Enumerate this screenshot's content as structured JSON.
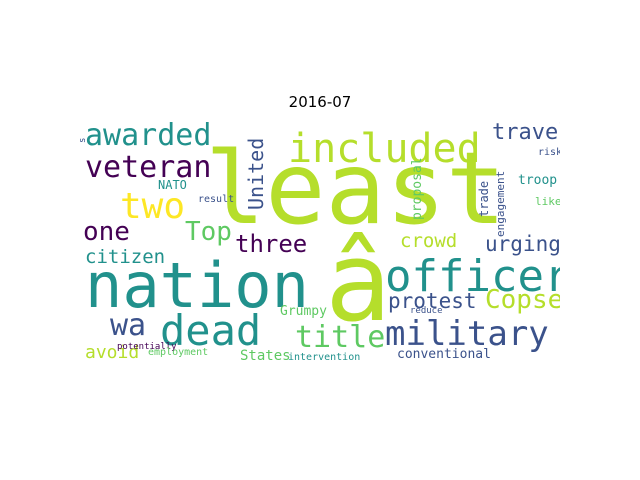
{
  "title": "2016-07",
  "palette": [
    "#440154",
    "#3b528b",
    "#21918c",
    "#5ec962",
    "#b5de2b",
    "#fde725"
  ],
  "words": [
    {
      "text": "least",
      "color": "#b5de2b"
    },
    {
      "text": "nation",
      "color": "#21918c"
    },
    {
      "text": "â",
      "color": "#b5de2b"
    },
    {
      "text": "included",
      "color": "#b5de2b"
    },
    {
      "text": "officer",
      "color": "#21918c"
    },
    {
      "text": "dead",
      "color": "#21918c"
    },
    {
      "text": "military",
      "color": "#3b528b"
    },
    {
      "text": "awarded",
      "color": "#21918c"
    },
    {
      "text": "veteran",
      "color": "#440154"
    },
    {
      "text": "two",
      "color": "#fde725"
    },
    {
      "text": "one",
      "color": "#440154"
    },
    {
      "text": "Top",
      "color": "#5ec962"
    },
    {
      "text": "wa",
      "color": "#3b528b"
    },
    {
      "text": "three",
      "color": "#440154"
    },
    {
      "text": "title",
      "color": "#5ec962"
    },
    {
      "text": "Copse",
      "color": "#b5de2b"
    },
    {
      "text": "protest",
      "color": "#3b528b"
    },
    {
      "text": "travel",
      "color": "#3b528b"
    },
    {
      "text": "urging",
      "color": "#3b528b"
    },
    {
      "text": "citizen",
      "color": "#21918c"
    },
    {
      "text": "crowd",
      "color": "#b5de2b"
    },
    {
      "text": "United",
      "color": "#3b528b"
    },
    {
      "text": "avoid",
      "color": "#b5de2b"
    },
    {
      "text": "States",
      "color": "#5ec962"
    },
    {
      "text": "conventional",
      "color": "#3b528b"
    },
    {
      "text": "Grumpy",
      "color": "#5ec962"
    },
    {
      "text": "NATO",
      "color": "#21918c"
    },
    {
      "text": "troop",
      "color": "#21918c"
    },
    {
      "text": "proposal",
      "color": "#5ec962"
    },
    {
      "text": "trade",
      "color": "#3b528b"
    },
    {
      "text": "engagement",
      "color": "#3b528b"
    },
    {
      "text": "likely",
      "color": "#5ec962"
    },
    {
      "text": "risky",
      "color": "#3b528b"
    },
    {
      "text": "result",
      "color": "#3b528b"
    },
    {
      "text": "potentially",
      "color": "#440154"
    },
    {
      "text": "employment",
      "color": "#5ec962"
    },
    {
      "text": "intervention",
      "color": "#21918c"
    },
    {
      "text": "reduce",
      "color": "#3b528b"
    },
    {
      "text": "s",
      "color": "#3b528b"
    }
  ]
}
